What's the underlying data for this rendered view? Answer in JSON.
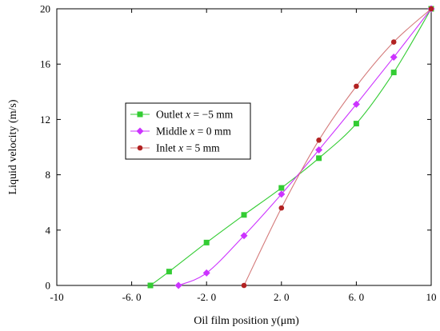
{
  "chart_data": {
    "type": "line",
    "xlabel": "Oil film position y(μm)",
    "ylabel": "Liquid velocity (m/s)",
    "xlim": [
      -10,
      10
    ],
    "ylim": [
      0,
      20
    ],
    "x_tick_labels": [
      "-10",
      "-6. 0",
      "-2. 0",
      "2. 0",
      "6. 0",
      "10"
    ],
    "x_tick_values": [
      -10,
      -6,
      -2,
      2,
      6,
      10
    ],
    "y_tick_labels": [
      "0",
      "4",
      "8",
      "12",
      "16",
      "20"
    ],
    "y_tick_values": [
      0,
      4,
      8,
      12,
      16,
      20
    ],
    "grid": false,
    "legend_position": "middle-left",
    "series": [
      {
        "name": "Outlet x = −5 mm",
        "legend_prefix": "Outlet ",
        "legend_var": "x",
        "legend_suffix": " = −5 mm",
        "color": "#33cc33",
        "marker": "square",
        "points": [
          [
            -5,
            0
          ],
          [
            -4,
            1
          ],
          [
            -2,
            3.1
          ],
          [
            0,
            5.1
          ],
          [
            2,
            7.05
          ],
          [
            4,
            9.2
          ],
          [
            6,
            11.7
          ],
          [
            8,
            15.4
          ],
          [
            10,
            20
          ]
        ]
      },
      {
        "name": "Middle x =  0 mm",
        "legend_prefix": "Middle ",
        "legend_var": "x",
        "legend_suffix": " =  0 mm",
        "color": "#cc33ff",
        "marker": "diamond",
        "points": [
          [
            -3.5,
            0
          ],
          [
            -2,
            0.9
          ],
          [
            0,
            3.6
          ],
          [
            2,
            6.6
          ],
          [
            4,
            9.8
          ],
          [
            6,
            13.1
          ],
          [
            8,
            16.5
          ],
          [
            10,
            20
          ]
        ]
      },
      {
        "name": "Inlet x = 5 mm",
        "legend_prefix": "Inlet ",
        "legend_var": "x",
        "legend_suffix": " = 5 mm",
        "color": "#b22222",
        "line_color": "#d47a7a",
        "marker": "circle",
        "points": [
          [
            0,
            0
          ],
          [
            2,
            5.6
          ],
          [
            4,
            10.5
          ],
          [
            6,
            14.4
          ],
          [
            8,
            17.6
          ],
          [
            10,
            20
          ]
        ]
      }
    ]
  }
}
